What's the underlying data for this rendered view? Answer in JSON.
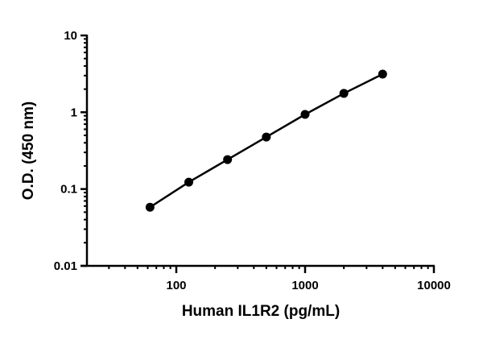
{
  "chart_data": {
    "type": "line",
    "title": "",
    "xlabel": "Human IL1R2 (pg/mL)",
    "ylabel": "O.D. (450 nm)",
    "xscale": "log",
    "yscale": "log",
    "xlim": [
      20,
      10000
    ],
    "ylim": [
      0.01,
      10
    ],
    "x_ticks": [
      100,
      1000,
      10000
    ],
    "x_tick_labels": [
      "100",
      "1000",
      "10000"
    ],
    "y_ticks": [
      0.01,
      0.1,
      1,
      10
    ],
    "y_tick_labels": [
      "0.01",
      "0.1",
      "1",
      "10"
    ],
    "grid": false,
    "legend": null,
    "series": [
      {
        "name": "Human IL1R2",
        "marker": "circle",
        "color": "#000000",
        "x": [
          62.5,
          125,
          250,
          500,
          1000,
          2000,
          4000
        ],
        "y": [
          0.058,
          0.123,
          0.242,
          0.476,
          0.937,
          1.76,
          3.14
        ]
      }
    ]
  },
  "labels": {
    "xlabel": "Human IL1R2 (pg/mL)",
    "ylabel": "O.D. (450 nm)"
  },
  "colors": {
    "axis": "#000000",
    "line": "#000000",
    "marker": "#000000",
    "background": "#ffffff"
  }
}
